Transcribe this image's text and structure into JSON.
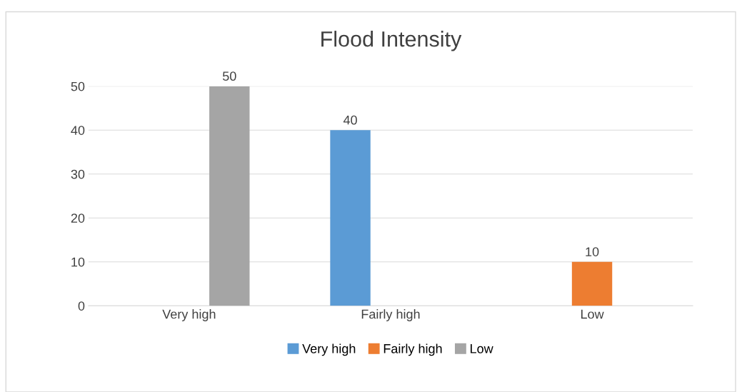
{
  "chart_data": {
    "type": "bar",
    "title": "Flood Intensity",
    "categories": [
      "Very high",
      "Fairly high",
      "Low"
    ],
    "series": [
      {
        "name": "Very high",
        "color": "#5b9bd5",
        "values": [
          null,
          40,
          null
        ]
      },
      {
        "name": "Fairly high",
        "color": "#ed7d31",
        "values": [
          null,
          null,
          10
        ]
      },
      {
        "name": "Low",
        "color": "#a5a5a5",
        "values": [
          50,
          null,
          null
        ]
      }
    ],
    "ylim": [
      0,
      50
    ],
    "yticks": [
      0,
      10,
      20,
      30,
      40,
      50
    ],
    "grid": "y",
    "legend": "bottom",
    "data_labels": true
  }
}
